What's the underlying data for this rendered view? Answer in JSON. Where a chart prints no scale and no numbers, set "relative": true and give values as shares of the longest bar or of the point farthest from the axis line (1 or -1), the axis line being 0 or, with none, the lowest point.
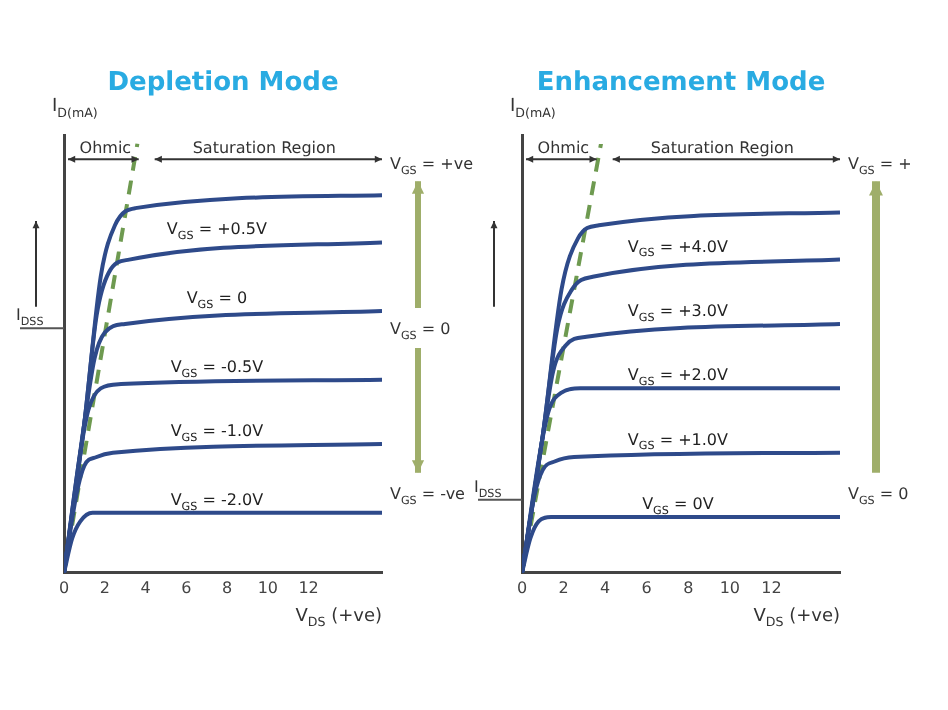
{
  "chart_data": [
    {
      "type": "line",
      "title": "Depletion Mode",
      "xlabel": "V$_{DS}$ (+ve)",
      "ylabel": "I$_{D(mA)}$",
      "relative": true,
      "xlim": [
        0,
        15.6
      ],
      "xticks": [
        0,
        2,
        4,
        6,
        8,
        10,
        12
      ],
      "legend": false,
      "annotations": [
        "Ohmic",
        "Saturation Region",
        "V$_{GS}$ = +ve",
        "V$_{GS}$ = 0",
        "V$_{GS}$ = -ve"
      ],
      "ref_lines": [
        {
          "axis": "y",
          "value": 0.57,
          "label": "I$_{DSS}$"
        }
      ],
      "series": [
        {
          "color": "#2e4a8a",
          "x": [
            0,
            1,
            1.8,
            2.5,
            3.5,
            15.6
          ],
          "values": [
            0,
            0.35,
            0.69,
            0.81,
            0.85,
            0.88
          ]
        },
        {
          "name": "V$_{GS}$ = +0.5V",
          "color": "#2e4a8a",
          "x": [
            0,
            1,
            1.6,
            2.2,
            3.2,
            15.6
          ],
          "values": [
            0,
            0.35,
            0.6,
            0.7,
            0.73,
            0.77
          ]
        },
        {
          "name": "V$_{GS}$ = 0",
          "color": "#2e4a8a",
          "x": [
            0,
            1,
            1.5,
            2,
            3,
            15.6
          ],
          "values": [
            0,
            0.35,
            0.5,
            0.56,
            0.58,
            0.61
          ]
        },
        {
          "name": "V$_{GS}$ = -0.5V",
          "color": "#2e4a8a",
          "x": [
            0,
            0.8,
            1.2,
            1.8,
            2.8,
            15.6
          ],
          "values": [
            0,
            0.28,
            0.38,
            0.43,
            0.44,
            0.45
          ]
        },
        {
          "name": "V$_{GS}$ = -1.0V",
          "color": "#2e4a8a",
          "x": [
            0,
            0.6,
            1,
            1.6,
            2.4,
            15.6
          ],
          "values": [
            0,
            0.18,
            0.25,
            0.27,
            0.28,
            0.3
          ]
        },
        {
          "name": "V$_{GS}$ = -2.0V",
          "color": "#2e4a8a",
          "x": [
            0,
            0.4,
            0.8,
            1.4,
            15.6
          ],
          "values": [
            0,
            0.08,
            0.12,
            0.14,
            0.14
          ]
        },
        {
          "color": "#6e9a50",
          "line_style": "dashed",
          "x": [
            0,
            3.6
          ],
          "values": [
            0,
            1
          ]
        }
      ]
    },
    {
      "type": "line",
      "title": "Enhancement Mode",
      "xlabel": "V$_{DS}$ (+ve)",
      "ylabel": "I$_{D(mA)}$",
      "relative": true,
      "xlim": [
        0,
        15.3
      ],
      "xticks": [
        0,
        2,
        4,
        6,
        8,
        10,
        12
      ],
      "legend": false,
      "annotations": [
        "Ohmic",
        "Saturation Region",
        "V$_{GS}$ = +",
        "V$_{GS}$ = 0"
      ],
      "ref_lines": [
        {
          "axis": "y",
          "value": 0.17,
          "label": "I$_{DSS}$"
        }
      ],
      "series": [
        {
          "color": "#2e4a8a",
          "x": [
            0,
            1,
            1.9,
            2.7,
            3.7,
            15.3
          ],
          "values": [
            0,
            0.32,
            0.66,
            0.78,
            0.81,
            0.84
          ]
        },
        {
          "name": "V$_{GS}$ = +4.0V",
          "color": "#2e4a8a",
          "x": [
            0,
            1,
            1.7,
            2.4,
            3.4,
            15.3
          ],
          "values": [
            0,
            0.32,
            0.57,
            0.66,
            0.69,
            0.73
          ]
        },
        {
          "name": "V$_{GS}$ = +3.0V",
          "color": "#2e4a8a",
          "x": [
            0,
            1,
            1.5,
            2.1,
            3.1,
            15.3
          ],
          "values": [
            0,
            0.32,
            0.47,
            0.53,
            0.55,
            0.58
          ]
        },
        {
          "name": "V$_{GS}$ = +2.0V",
          "color": "#2e4a8a",
          "x": [
            0,
            0.9,
            1.3,
            1.9,
            2.8,
            15.3
          ],
          "values": [
            0,
            0.29,
            0.38,
            0.42,
            0.43,
            0.43
          ]
        },
        {
          "name": "V$_{GS}$ = +1.0V",
          "color": "#2e4a8a",
          "x": [
            0,
            0.6,
            1,
            1.6,
            2.5,
            15.3
          ],
          "values": [
            0,
            0.18,
            0.24,
            0.26,
            0.27,
            0.28
          ]
        },
        {
          "name": "V$_{GS}$ = 0V",
          "color": "#2e4a8a",
          "x": [
            0,
            0.4,
            0.8,
            1.4,
            15.3
          ],
          "values": [
            0,
            0.08,
            0.12,
            0.13,
            0.13
          ]
        },
        {
          "color": "#6e9a50",
          "line_style": "dashed",
          "x": [
            0,
            3.8
          ],
          "values": [
            0,
            1
          ]
        }
      ]
    }
  ]
}
